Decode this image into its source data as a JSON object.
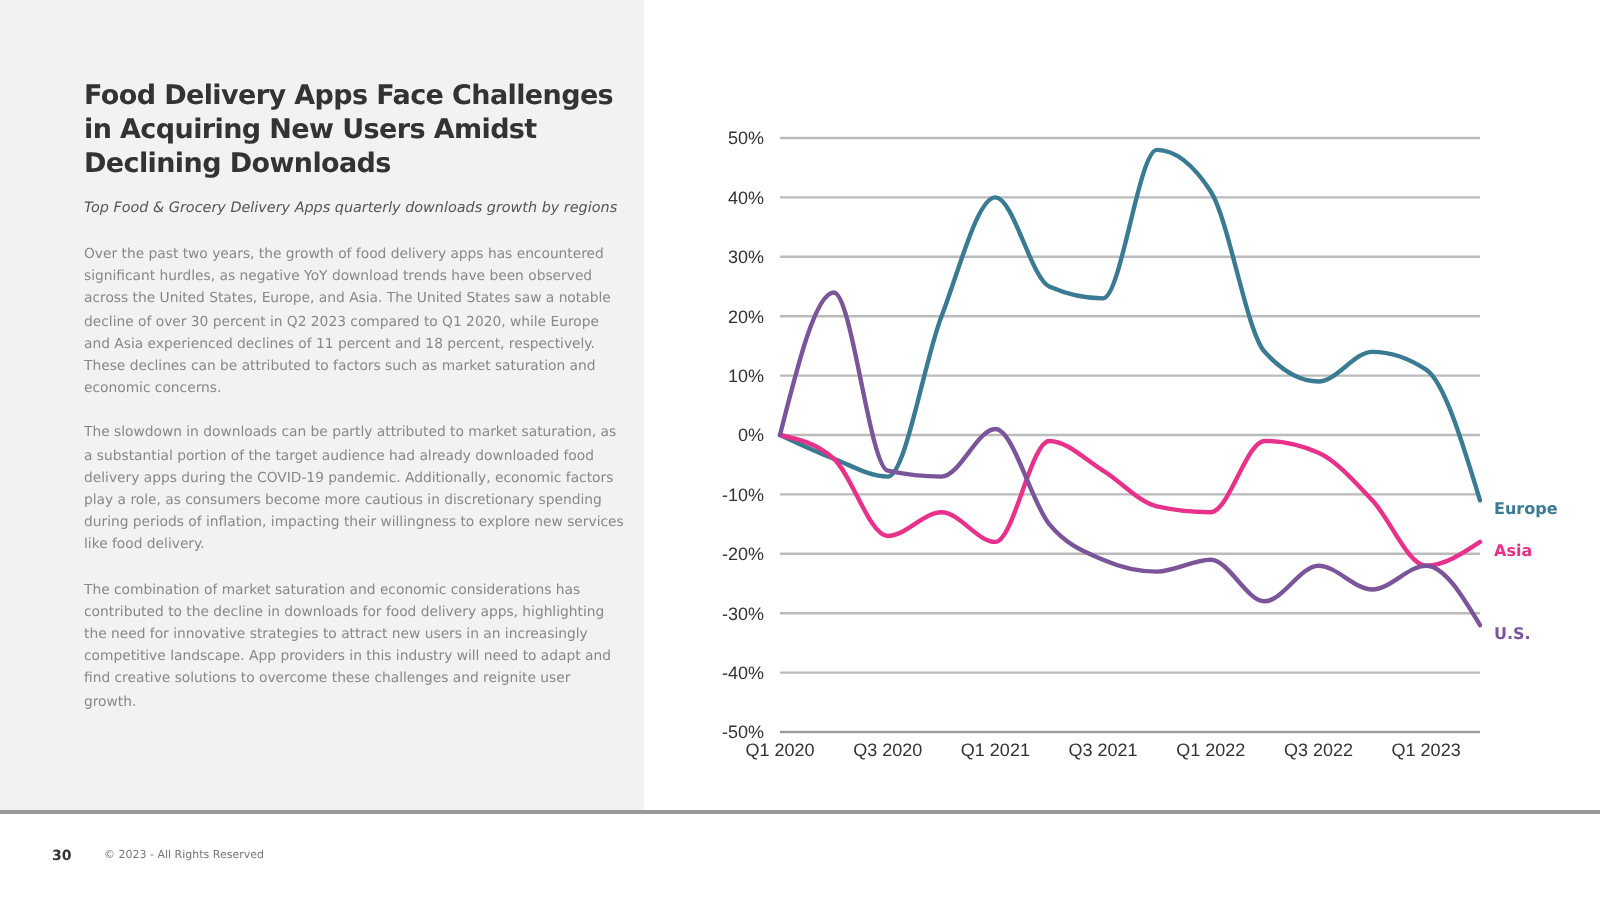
{
  "chart_data": {
    "type": "line",
    "title": "Food Delivery Apps Face Challenges in Acquiring New Users Amidst Declining Downloads",
    "subtitle": "Top Food & Grocery Delivery Apps quarterly downloads growth by regions",
    "annotations": [
      "Over the past two years, the growth of food delivery apps has encountered significant hurdles, as negative YoY download trends have been observed across the United States, Europe, and Asia. The United States saw a notable decline of over 30 percent in Q2 2023 compared to Q1 2020, while Europe and Asia experienced declines of 11 percent and 18 percent, respectively. These declines can be attributed to factors such as market saturation and economic concerns.",
      "The slowdown in downloads can be partly attributed to market saturation, as a substantial portion of the target audience had already downloaded food delivery apps during the COVID-19 pandemic. Additionally, economic factors play a role, as consumers become more cautious in discretionary spending during periods of inflation, impacting their willingness to explore new services like food delivery.",
      "The combination of market saturation and economic considerations has contributed to the decline in downloads for food delivery apps, highlighting the need for innovative strategies to attract new users in an increasingly competitive landscape. App providers in this industry will need to adapt and find creative solutions to overcome these challenges and reignite user growth.",
      "30",
      "© 2023 - All Rights Reserved"
    ],
    "categories": [
      "Q1 2020",
      null,
      "Q3 2020",
      null,
      "Q1 2021",
      null,
      "Q3 2021",
      null,
      "Q1 2022",
      null,
      "Q3 2022",
      null,
      "Q1 2023",
      null
    ],
    "series": [
      {
        "name": "Europe",
        "color": "#3a7a93",
        "values": [
          0,
          -4,
          -7,
          20,
          40,
          25,
          23,
          48,
          41,
          14,
          9,
          14,
          11,
          -11
        ]
      },
      {
        "name": "Asia",
        "color": "#e8318a",
        "values": [
          0,
          -4,
          -17,
          -13,
          -18,
          -1,
          -6,
          -12,
          -13,
          -1,
          -3,
          -11,
          -22,
          -18
        ]
      },
      {
        "name": "U.S.",
        "color": "#7b559a",
        "values": [
          0,
          24,
          -6,
          -7,
          1,
          -15,
          -21,
          -23,
          -21,
          -28,
          -22,
          -26,
          -22,
          -32
        ]
      }
    ],
    "ylim": [
      -50,
      50
    ],
    "yticks": [
      {
        "value": 50,
        "label": "50%"
      },
      {
        "value": 40,
        "label": "40%"
      },
      {
        "value": 30,
        "label": "30%"
      },
      {
        "value": 20,
        "label": "20%"
      },
      {
        "value": 10,
        "label": "10%"
      },
      {
        "value": 0,
        "label": "0%"
      },
      {
        "value": -10,
        "label": "-10%"
      },
      {
        "value": -20,
        "label": "-20%"
      },
      {
        "value": -30,
        "label": "-30%"
      },
      {
        "value": -40,
        "label": "-40%"
      },
      {
        "value": -50,
        "label": "-50%"
      }
    ],
    "grid": "y",
    "marker": "none",
    "line_style": "solid"
  }
}
